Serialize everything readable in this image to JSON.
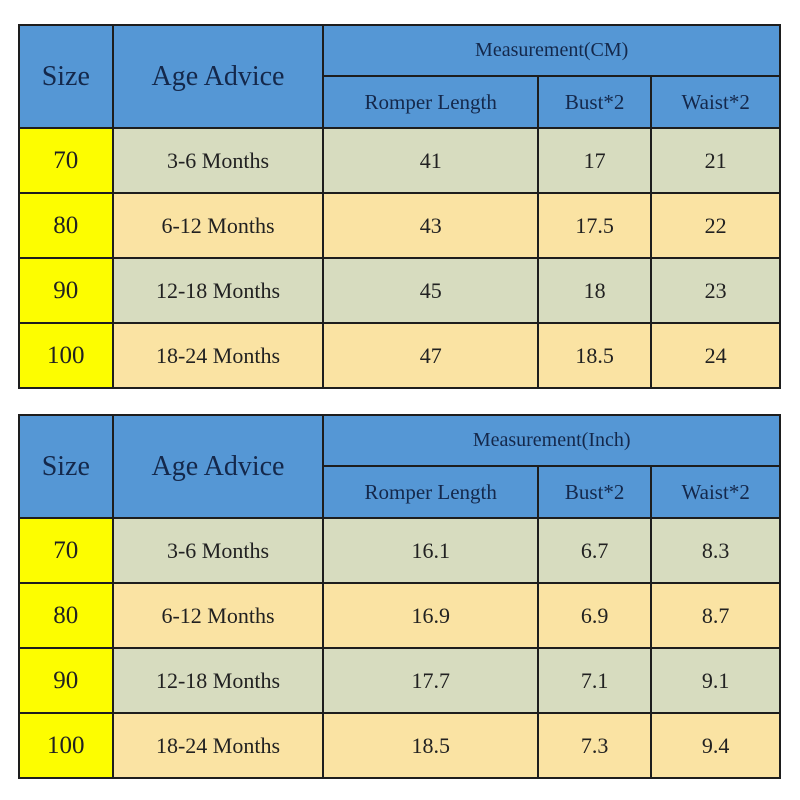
{
  "colors": {
    "header-blue": "#5597d5",
    "size-yellow": "#fdfd00",
    "row-green": "#d7dcbf",
    "row-tan": "#fae3a3",
    "border": "#1d1d1d",
    "header-text": "#14284b",
    "cell-text": "#212121",
    "page-bg": "#ffffff"
  },
  "chart_data": [
    {
      "type": "table",
      "title": "Measurement(CM)",
      "columns": [
        "Size",
        "Age Advice",
        "Romper Length",
        "Bust*2",
        "Waist*2"
      ],
      "rows": [
        [
          "70",
          "3-6 Months",
          "41",
          "17",
          "21"
        ],
        [
          "80",
          "6-12 Months",
          "43",
          "17.5",
          "22"
        ],
        [
          "90",
          "12-18 Months",
          "45",
          "18",
          "23"
        ],
        [
          "100",
          "18-24 Months",
          "47",
          "18.5",
          "24"
        ]
      ]
    },
    {
      "type": "table",
      "title": "Measurement(Inch)",
      "columns": [
        "Size",
        "Age Advice",
        "Romper Length",
        "Bust*2",
        "Waist*2"
      ],
      "rows": [
        [
          "70",
          "3-6 Months",
          "16.1",
          "6.7",
          "8.3"
        ],
        [
          "80",
          "6-12 Months",
          "16.9",
          "6.9",
          "8.7"
        ],
        [
          "90",
          "12-18 Months",
          "17.7",
          "7.1",
          "9.1"
        ],
        [
          "100",
          "18-24 Months",
          "18.5",
          "7.3",
          "9.4"
        ]
      ]
    }
  ]
}
